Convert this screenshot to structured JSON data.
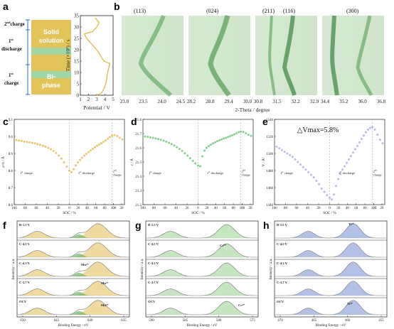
{
  "panels": {
    "a": {
      "letter": "a",
      "segments": [
        {
          "label": "Solid solution",
          "color": "#e2c45b"
        },
        {
          "label": "Bi-phase",
          "color": "#9fd6a3"
        }
      ],
      "side_labels": [
        {
          "base": "2",
          "sup": "nd",
          "tail": "charge"
        },
        {
          "base": "1",
          "sup": "st",
          "tail": "discharge"
        },
        {
          "base": "1",
          "sup": "st",
          "tail": "charge"
        }
      ],
      "ylabel": "Time (×10³) / s",
      "xlabel": "Potential / V",
      "xticks": [
        "1",
        "2",
        "3",
        "4",
        "5"
      ],
      "yticks": [
        "0",
        "5",
        "10",
        "15",
        "20",
        "25",
        "30",
        "35"
      ]
    },
    "b": {
      "letter": "b",
      "peaks": [
        "(113)",
        "(024)",
        "(211)",
        "(116)",
        "(300)"
      ],
      "maps": [
        {
          "ticks": [
            "23.0",
            "23.5",
            "24.0",
            "24.5"
          ]
        },
        {
          "ticks": [
            "28.2",
            "28.8",
            "29.4",
            "30.0"
          ]
        },
        {
          "ticks": [
            "30.8",
            "31.5",
            "32.2",
            "32.9"
          ]
        },
        {
          "ticks": [
            "34.4",
            "35.2",
            "36.0",
            "36.8"
          ]
        }
      ],
      "xlabel": "2-Theta / degree"
    },
    "c": {
      "letter": "c",
      "ylabel": "a=b / Å",
      "xlabel": "SOC / %",
      "yticks": [
        "8.6",
        "8.7",
        "8.8",
        "8.9",
        "9.0",
        "9.1"
      ],
      "ann": {
        "c1": "1",
        "c1s": "st",
        "c1t": " charge",
        "d1": "1",
        "d1s": "st",
        "d1t": " discharge",
        "c2": "2",
        "c2s": "nd",
        "c2t": "charge"
      }
    },
    "d": {
      "letter": "d",
      "ylabel": "c / Å",
      "xlabel": "SOC / %",
      "yticks": [
        "21.2",
        "21.3",
        "21.4",
        "21.5",
        "21.6",
        "21.7",
        "21.8"
      ],
      "ann": {
        "c1": "1",
        "c1s": "st",
        "c1t": " charge",
        "d1": "1",
        "d1s": "st",
        "d1t": " discharge",
        "c2": "2",
        "c2s": "nd",
        "c2t": "charge"
      }
    },
    "e": {
      "letter": "e",
      "ylabel": "V / Å³",
      "xlabel": "SOC / %",
      "yticks": [
        "1440",
        "1460",
        "1480",
        "1500",
        "1520",
        "1540"
      ],
      "note": "△Vmax=5.8%",
      "ann": {
        "c1": "1",
        "c1s": "st",
        "c1t": " charge",
        "d1": "1",
        "d1s": "st",
        "d1t": " discharge",
        "c2": "2",
        "c2s": "nd",
        "c2t": "charge"
      }
    },
    "f": {
      "letter": "f",
      "xlabel": "Binding Energy / eV",
      "ylabel": "Intensity / a.u.",
      "xticks": [
        "650",
        "645",
        "640",
        "635"
      ],
      "rows": [
        "D-1.5 V",
        "C-4.5 V",
        "C-4.3 V",
        "C-3.7 V",
        "OCV"
      ],
      "species": [
        "Mn³⁺",
        "Mn³⁺",
        "Mn²⁺"
      ]
    },
    "g": {
      "letter": "g",
      "xlabel": "Binding Energy / eV",
      "ylabel": "Intensity / a.u.",
      "xticks": [
        "590",
        "585",
        "580",
        "575"
      ],
      "rows": [
        "D-1.5 V",
        "C-4.5 V",
        "C-4.3 V",
        "C-3.7 V",
        "OCV"
      ],
      "species": [
        "Cr⁶⁺",
        "Cr³⁺"
      ]
    },
    "h": {
      "letter": "h",
      "xlabel": "Binding Energy / eV",
      "ylabel": "Intensity / a.u.",
      "xticks": [
        "470",
        "465",
        "460",
        "455"
      ],
      "rows": [
        "D-1.5 V",
        "C-4.5 V",
        "C-4.3 V",
        "C-3.7 V",
        "OCV"
      ],
      "species": [
        "Ti³⁺",
        "Ti⁴⁺"
      ]
    }
  },
  "chart_data": [
    {
      "type": "line",
      "panel": "a",
      "xlabel": "Potential / V",
      "ylabel": "Time (×10³) / s",
      "xlim": [
        1,
        5
      ],
      "ylim": [
        0,
        35
      ],
      "series": [
        {
          "x": [
            3.0,
            3.6,
            3.9,
            4.1,
            4.2,
            4.3,
            4.4,
            4.55,
            4.6,
            3.9,
            3.5,
            3.3,
            3.0,
            2.5,
            2.0,
            1.6,
            1.5,
            2.5,
            3.0,
            3.3,
            2.8
          ],
          "y": [
            0,
            1,
            3,
            5,
            7,
            9,
            11,
            13,
            14,
            15,
            17,
            18.5,
            20,
            22,
            24,
            26,
            27,
            28,
            30,
            32,
            34
          ]
        }
      ]
    },
    {
      "type": "scatter",
      "panel": "c",
      "xlabel": "SOC / %",
      "ylabel": "a=b / Å",
      "ylim": [
        8.6,
        9.1
      ],
      "series": [
        {
          "color": "#e0b33f",
          "y": [
            8.979,
            8.976,
            8.973,
            8.97,
            8.968,
            8.965,
            8.962,
            8.959,
            8.955,
            8.951,
            8.946,
            8.94,
            8.933,
            8.925,
            8.915,
            8.903,
            8.888,
            8.87,
            8.848,
            8.823,
            8.8,
            8.79,
            8.808,
            8.83,
            8.848,
            8.862,
            8.875,
            8.887,
            8.898,
            8.908,
            8.918,
            8.928,
            8.937,
            8.945,
            8.952,
            8.96,
            8.968,
            8.976,
            8.986,
            8.996,
            9.004,
            9.008,
            9.002,
            8.992,
            8.982
          ]
        }
      ]
    },
    {
      "type": "scatter",
      "panel": "d",
      "xlabel": "SOC / %",
      "ylabel": "c / Å",
      "ylim": [
        21.2,
        21.8
      ],
      "series": [
        {
          "color": "#5cbf6a",
          "y": [
            21.68,
            21.677,
            21.673,
            21.67,
            21.666,
            21.661,
            21.656,
            21.65,
            21.643,
            21.635,
            21.626,
            21.616,
            21.605,
            21.592,
            21.578,
            21.562,
            21.545,
            21.527,
            21.508,
            21.49,
            21.475,
            21.47,
            21.54,
            21.58,
            21.6,
            21.612,
            21.622,
            21.631,
            21.639,
            21.646,
            21.653,
            21.659,
            21.665,
            21.67,
            21.676,
            21.682,
            21.688,
            21.695,
            21.702,
            21.71,
            21.714,
            21.712,
            21.702,
            21.692,
            21.684
          ]
        }
      ]
    },
    {
      "type": "scatter",
      "panel": "e",
      "xlabel": "SOC / %",
      "ylabel": "V / Å³",
      "ylim": [
        1440,
        1540
      ],
      "series": [
        {
          "color": "#9aa6e0",
          "y": [
            1508,
            1506,
            1504,
            1502,
            1500,
            1498,
            1496,
            1493,
            1490,
            1487,
            1484,
            1481,
            1478,
            1475,
            1472,
            1468,
            1464,
            1459,
            1455,
            1451,
            1448,
            1446,
            1452,
            1462,
            1470,
            1476,
            1481,
            1485,
            1489,
            1493,
            1497,
            1501,
            1505,
            1509,
            1513,
            1517,
            1521,
            1525,
            1528,
            1530,
            1531,
            1528,
            1522,
            1516,
            1512
          ]
        }
      ]
    }
  ]
}
